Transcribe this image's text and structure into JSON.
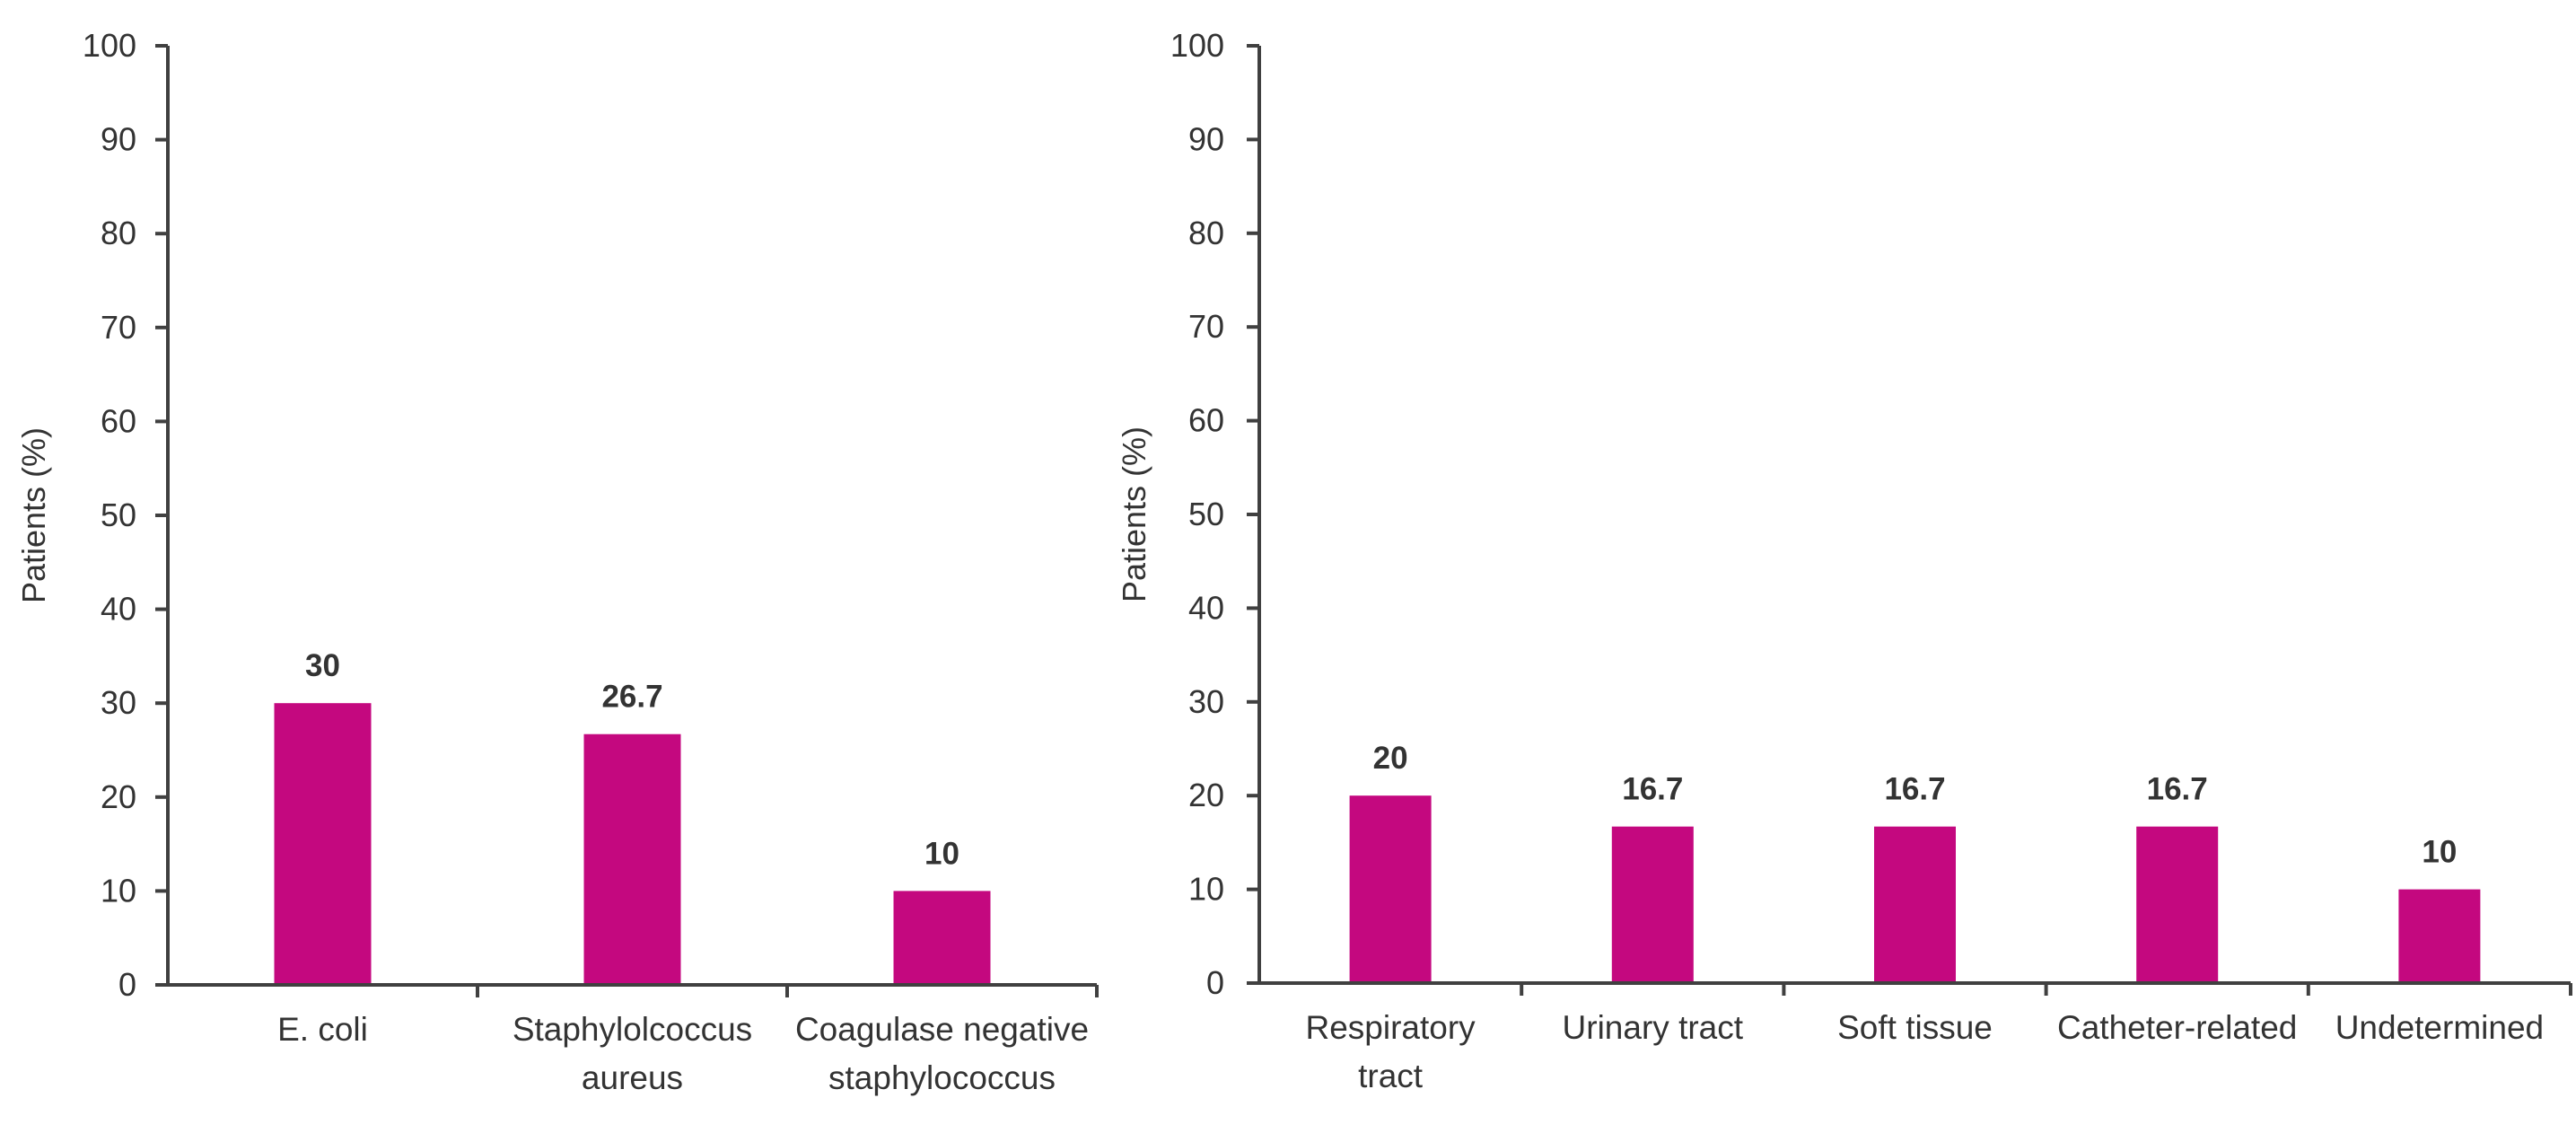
{
  "chart_data": [
    {
      "type": "bar",
      "title": "",
      "xlabel": "",
      "ylabel": "Patients (%)",
      "ylim": [
        0,
        100
      ],
      "yticks": [
        0,
        10,
        20,
        30,
        40,
        50,
        60,
        70,
        80,
        90,
        100
      ],
      "grid": false,
      "categories": [
        [
          "E. coli"
        ],
        [
          "Staphylolcoccus",
          "aureus"
        ],
        [
          "Coagulase negative",
          "staphylococcus"
        ]
      ],
      "values": [
        30,
        26.7,
        10
      ],
      "value_labels": [
        "30",
        "26.7",
        "10"
      ],
      "bar_color": "#c4087f"
    },
    {
      "type": "bar",
      "title": "",
      "xlabel": "",
      "ylabel": "Patients (%)",
      "ylim": [
        0,
        100
      ],
      "yticks": [
        0,
        10,
        20,
        30,
        40,
        50,
        60,
        70,
        80,
        90,
        100
      ],
      "grid": false,
      "categories": [
        [
          "Respiratory",
          "tract"
        ],
        [
          "Urinary tract"
        ],
        [
          "Soft tissue"
        ],
        [
          "Catheter-related"
        ],
        [
          "Undetermined"
        ]
      ],
      "values": [
        20,
        16.7,
        16.7,
        16.7,
        10
      ],
      "value_labels": [
        "20",
        "16.7",
        "16.7",
        "16.7",
        "10"
      ],
      "bar_color": "#c4087f"
    }
  ]
}
